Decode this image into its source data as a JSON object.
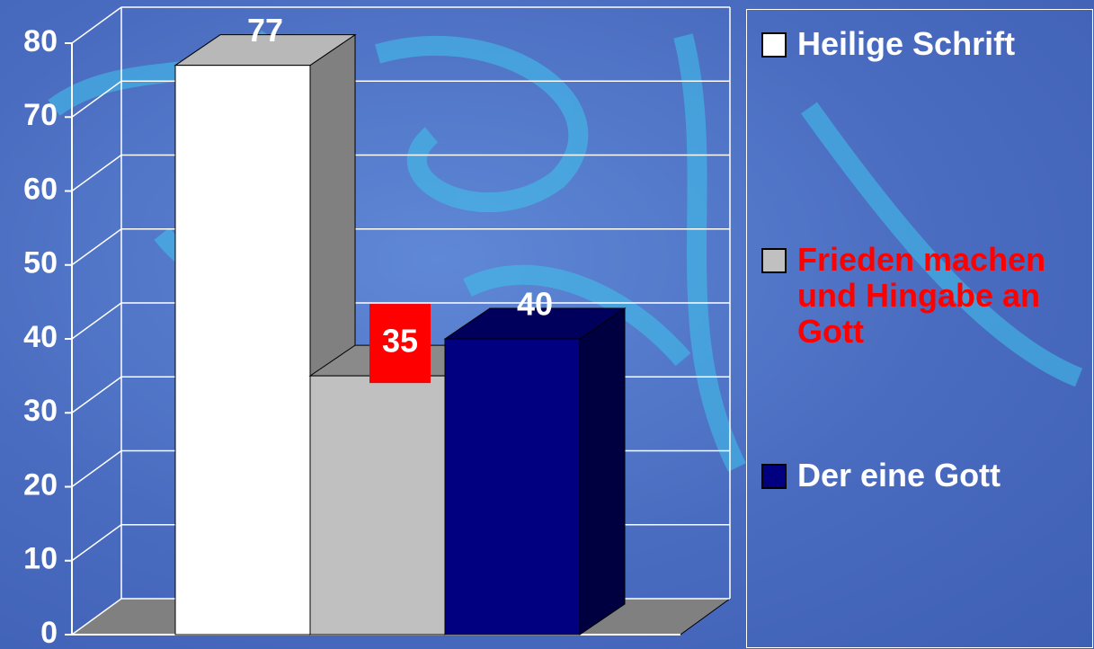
{
  "chart_data": {
    "type": "bar3d",
    "categories": [
      null
    ],
    "series": [
      {
        "name": "Heilige Schrift",
        "color": "#ffffff",
        "text_color": "#ffffff",
        "values": [
          77
        ]
      },
      {
        "name": "Frieden machen und Hingabe an Gott",
        "color": "#c0c0c0",
        "text_color": "#ff0000",
        "label_background": "#ff0000",
        "values": [
          35
        ]
      },
      {
        "name": "Der eine Gott",
        "color": "#000080",
        "text_color": "#ffffff",
        "values": [
          40
        ]
      }
    ],
    "ylim": [
      0,
      80
    ],
    "yticks": [
      0,
      10,
      20,
      30,
      40,
      50,
      60,
      70,
      80
    ],
    "grid": true,
    "legend": "right"
  }
}
